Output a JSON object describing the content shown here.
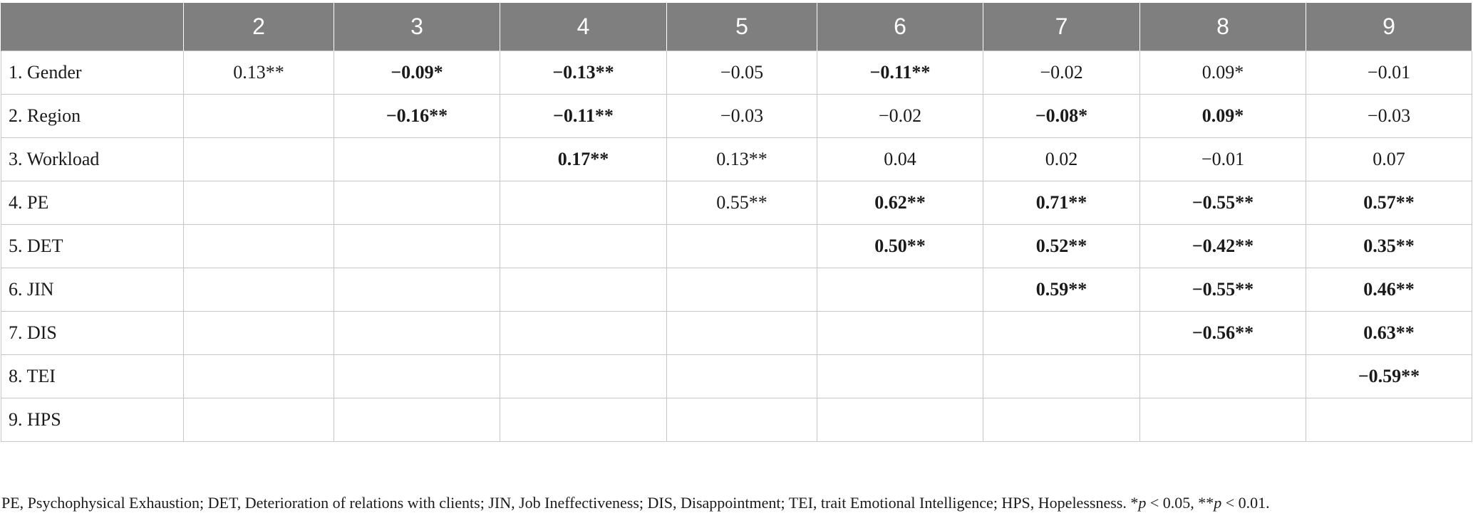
{
  "table": {
    "header_corner": "",
    "columns": [
      "2",
      "3",
      "4",
      "5",
      "6",
      "7",
      "8",
      "9"
    ],
    "rows": [
      {
        "label": "1. Gender",
        "cells": [
          {
            "text": "0.13**",
            "bold": false
          },
          {
            "text": "−0.09*",
            "bold": true
          },
          {
            "text": "−0.13**",
            "bold": true
          },
          {
            "text": "−0.05",
            "bold": false
          },
          {
            "text": "−0.11**",
            "bold": true
          },
          {
            "text": "−0.02",
            "bold": false
          },
          {
            "text": "0.09*",
            "bold": false
          },
          {
            "text": "−0.01",
            "bold": false
          }
        ]
      },
      {
        "label": "2. Region",
        "cells": [
          {
            "text": "",
            "bold": false
          },
          {
            "text": "−0.16**",
            "bold": true
          },
          {
            "text": "−0.11**",
            "bold": true
          },
          {
            "text": "−0.03",
            "bold": false
          },
          {
            "text": "−0.02",
            "bold": false
          },
          {
            "text": "−0.08*",
            "bold": true
          },
          {
            "text": "0.09*",
            "bold": true
          },
          {
            "text": "−0.03",
            "bold": false
          }
        ]
      },
      {
        "label": "3. Workload",
        "cells": [
          {
            "text": "",
            "bold": false
          },
          {
            "text": "",
            "bold": false
          },
          {
            "text": "0.17**",
            "bold": true
          },
          {
            "text": "0.13**",
            "bold": false
          },
          {
            "text": "0.04",
            "bold": false
          },
          {
            "text": "0.02",
            "bold": false
          },
          {
            "text": "−0.01",
            "bold": false
          },
          {
            "text": "0.07",
            "bold": false
          }
        ]
      },
      {
        "label": "4. PE",
        "cells": [
          {
            "text": "",
            "bold": false
          },
          {
            "text": "",
            "bold": false
          },
          {
            "text": "",
            "bold": false
          },
          {
            "text": "0.55**",
            "bold": false
          },
          {
            "text": "0.62**",
            "bold": true
          },
          {
            "text": "0.71**",
            "bold": true
          },
          {
            "text": "−0.55**",
            "bold": true
          },
          {
            "text": "0.57**",
            "bold": true
          }
        ]
      },
      {
        "label": "5. DET",
        "cells": [
          {
            "text": "",
            "bold": false
          },
          {
            "text": "",
            "bold": false
          },
          {
            "text": "",
            "bold": false
          },
          {
            "text": "",
            "bold": false
          },
          {
            "text": "0.50**",
            "bold": true
          },
          {
            "text": "0.52**",
            "bold": true
          },
          {
            "text": "−0.42**",
            "bold": true
          },
          {
            "text": "0.35**",
            "bold": true
          }
        ]
      },
      {
        "label": "6. JIN",
        "cells": [
          {
            "text": "",
            "bold": false
          },
          {
            "text": "",
            "bold": false
          },
          {
            "text": "",
            "bold": false
          },
          {
            "text": "",
            "bold": false
          },
          {
            "text": "",
            "bold": false
          },
          {
            "text": "0.59**",
            "bold": true
          },
          {
            "text": "−0.55**",
            "bold": true
          },
          {
            "text": "0.46**",
            "bold": true
          }
        ]
      },
      {
        "label": "7. DIS",
        "cells": [
          {
            "text": "",
            "bold": false
          },
          {
            "text": "",
            "bold": false
          },
          {
            "text": "",
            "bold": false
          },
          {
            "text": "",
            "bold": false
          },
          {
            "text": "",
            "bold": false
          },
          {
            "text": "",
            "bold": false
          },
          {
            "text": "−0.56**",
            "bold": true
          },
          {
            "text": "0.63**",
            "bold": true
          }
        ]
      },
      {
        "label": "8. TEI",
        "cells": [
          {
            "text": "",
            "bold": false
          },
          {
            "text": "",
            "bold": false
          },
          {
            "text": "",
            "bold": false
          },
          {
            "text": "",
            "bold": false
          },
          {
            "text": "",
            "bold": false
          },
          {
            "text": "",
            "bold": false
          },
          {
            "text": "",
            "bold": false
          },
          {
            "text": "−0.59**",
            "bold": true
          }
        ]
      },
      {
        "label": "9. HPS",
        "cells": [
          {
            "text": "",
            "bold": false
          },
          {
            "text": "",
            "bold": false
          },
          {
            "text": "",
            "bold": false
          },
          {
            "text": "",
            "bold": false
          },
          {
            "text": "",
            "bold": false
          },
          {
            "text": "",
            "bold": false
          },
          {
            "text": "",
            "bold": false
          },
          {
            "text": "",
            "bold": false
          }
        ]
      }
    ]
  },
  "footnote": {
    "text": "PE, Psychophysical Exhaustion; DET, Deterioration of relations with clients; JIN, Job Ineffectiveness; DIS, Disappointment; TEI, trait Emotional Intelligence; HPS, Hopelessness. ",
    "sig1_prefix": "*",
    "p_symbol": "p",
    "sig1_value": " < 0.05, ",
    "sig2_prefix": "**",
    "sig2_value": " < 0.01."
  },
  "colors": {
    "header_bg": "#7f7f7f",
    "header_text": "#ffffff",
    "grid": "#c6c6c6"
  }
}
